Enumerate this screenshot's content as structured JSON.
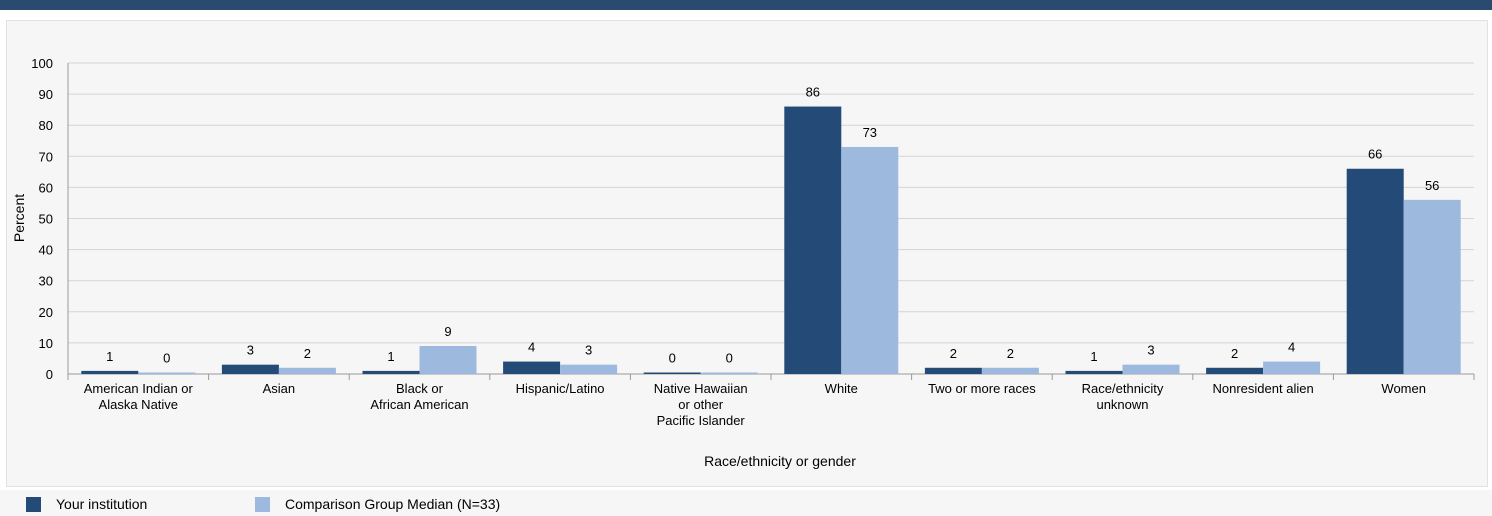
{
  "chart_data": {
    "type": "bar",
    "categories": [
      [
        "American Indian or",
        "Alaska Native"
      ],
      [
        "Asian"
      ],
      [
        "Black or",
        "African American"
      ],
      [
        "Hispanic/Latino"
      ],
      [
        "Native Hawaiian",
        "or other",
        "Pacific Islander"
      ],
      [
        "White"
      ],
      [
        "Two or more races"
      ],
      [
        "Race/ethnicity",
        "unknown"
      ],
      [
        "Nonresident alien"
      ],
      [
        "Women"
      ]
    ],
    "series": [
      {
        "name": "Your institution",
        "color": "#244b77",
        "values": [
          1,
          3,
          1,
          4,
          0,
          86,
          2,
          1,
          2,
          66
        ],
        "labels": [
          "1",
          "3",
          "1",
          "4",
          "0",
          "86",
          "2",
          "1",
          "2",
          "66"
        ]
      },
      {
        "name": "Comparison Group Median (N=33)",
        "color": "#9dbade",
        "values": [
          0,
          2,
          9,
          3,
          0,
          73,
          2,
          3,
          4,
          56
        ],
        "labels": [
          "0",
          "2",
          "9",
          "3",
          "0",
          "73",
          "2",
          "3",
          "4",
          "56"
        ]
      }
    ],
    "xlabel": "Race/ethnicity or gender",
    "ylabel": "Percent",
    "ylim": [
      0,
      100
    ],
    "yticks": [
      "0",
      "10",
      "20",
      "30",
      "40",
      "50",
      "60",
      "70",
      "80",
      "90",
      "100"
    ],
    "grid": true,
    "legend_position": "bottom-left"
  }
}
